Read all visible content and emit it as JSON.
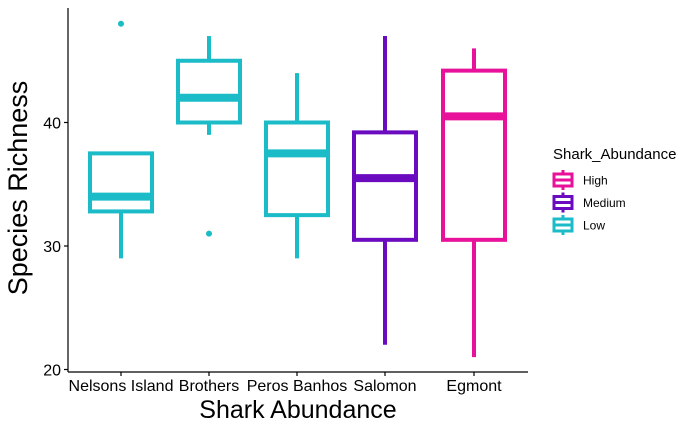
{
  "chart_data": {
    "type": "boxplot",
    "title": "",
    "xlabel": "Shark Abundance",
    "ylabel": "Species Richness",
    "ylim": [
      19.8,
      49
    ],
    "yticks": [
      20,
      30,
      40
    ],
    "grid": false,
    "categories": [
      "Nelsons Island",
      "Brothers",
      "Peros Banhos",
      "Salomon",
      "Egmont"
    ],
    "boxes": [
      {
        "category": "Nelsons Island",
        "group": "Low",
        "whisker_low": 29,
        "q1": 32.8,
        "median": 34,
        "q3": 37.5,
        "whisker_high": 37.5,
        "outliers": [
          48
        ]
      },
      {
        "category": "Brothers",
        "group": "Low",
        "whisker_low": 39,
        "q1": 40,
        "median": 42,
        "q3": 45,
        "whisker_high": 47,
        "outliers": [
          31
        ]
      },
      {
        "category": "Peros Banhos",
        "group": "Low",
        "whisker_low": 29,
        "q1": 32.5,
        "median": 37.5,
        "q3": 40,
        "whisker_high": 44,
        "outliers": []
      },
      {
        "category": "Salomon",
        "group": "Medium",
        "whisker_low": 22,
        "q1": 30.5,
        "median": 35.5,
        "q3": 39.2,
        "whisker_high": 47,
        "outliers": []
      },
      {
        "category": "Egmont",
        "group": "High",
        "whisker_low": 21,
        "q1": 30.5,
        "median": 40.5,
        "q3": 44.2,
        "whisker_high": 46,
        "outliers": []
      }
    ],
    "legend": {
      "title": "Shark_Abundance",
      "placement": "right",
      "entries": [
        {
          "label": "High",
          "color": "#e8119a"
        },
        {
          "label": "Medium",
          "color": "#6b0bc0"
        },
        {
          "label": "Low",
          "color": "#1bbcc8"
        }
      ]
    }
  }
}
